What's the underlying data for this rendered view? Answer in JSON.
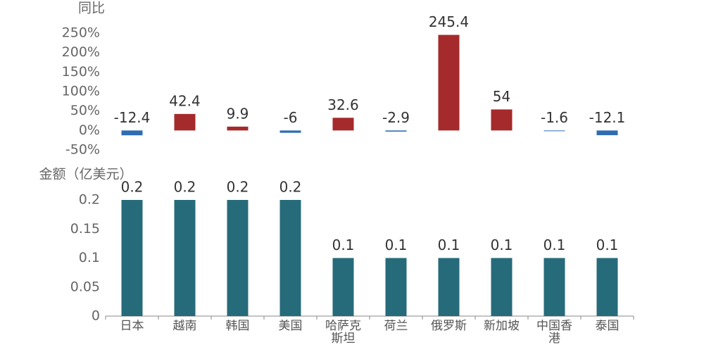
{
  "chart_data": [
    {
      "type": "bar",
      "y_label": "同比",
      "values": [
        -12.4,
        42.4,
        9.9,
        -6,
        32.6,
        -2.9,
        245.4,
        54,
        -1.6,
        -12.1
      ],
      "positive_color": "#a52a2b",
      "negative_color": "#2f6db3",
      "ylim": [
        -50,
        250
      ],
      "yticks": [
        {
          "value": -50,
          "label": "-50%"
        },
        {
          "value": 0,
          "label": "0%"
        },
        {
          "value": 50,
          "label": "50%"
        },
        {
          "value": 100,
          "label": "100%"
        },
        {
          "value": 150,
          "label": "150%"
        },
        {
          "value": 200,
          "label": "200%"
        },
        {
          "value": 250,
          "label": "250%"
        }
      ]
    },
    {
      "type": "bar",
      "y_label": "金额（亿美元）",
      "categories": [
        "日本",
        "越南",
        "韩国",
        "美国",
        "哈萨克斯坦",
        "荷兰",
        "俄罗斯",
        "新加坡",
        "中国香港",
        "泰国"
      ],
      "values": [
        0.2,
        0.2,
        0.2,
        0.2,
        0.1,
        0.1,
        0.1,
        0.1,
        0.1,
        0.1
      ],
      "color": "#266b7a",
      "ylim": [
        0,
        0.2
      ],
      "yticks": [
        0,
        0.05,
        0.1,
        0.15,
        0.2
      ]
    }
  ]
}
